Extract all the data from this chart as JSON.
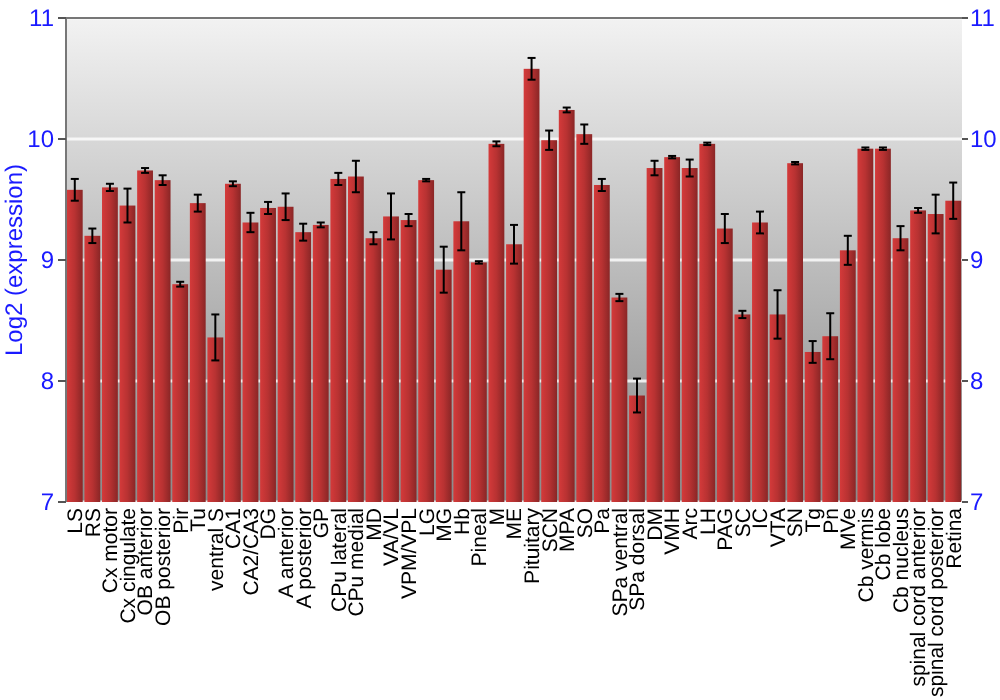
{
  "chart_data": {
    "type": "bar",
    "ylabel": "Log2 (expression)",
    "categories": [
      "LS",
      "RS",
      "Cx motor",
      "Cx cingulate",
      "OB anterior",
      "OB posterior",
      "Pir",
      "Tu",
      "ventral S",
      "CA1",
      "CA2/CA3",
      "DG",
      "A anterior",
      "A posterior",
      "GP",
      "CPu lateral",
      "CPu medial",
      "MD",
      "VA/VL",
      "VPM/VPL",
      "LG",
      "MG",
      "Hb",
      "Pineal",
      "M",
      "ME",
      "Pituitary",
      "SCN",
      "MPA",
      "SO",
      "Pa",
      "SPa ventral",
      "SPa dorsal",
      "DM",
      "VMH",
      "Arc",
      "LH",
      "PAG",
      "SC",
      "IC",
      "VTA",
      "SN",
      "Tg",
      "Pn",
      "MVe",
      "Cb vermis",
      "Cb lobe",
      "Cb nucleus",
      "spinal cord anterior",
      "spinal cord posterior",
      "Retina"
    ],
    "values": [
      9.58,
      9.2,
      9.6,
      9.45,
      9.74,
      9.66,
      8.8,
      9.47,
      8.36,
      9.63,
      9.31,
      9.43,
      9.44,
      9.23,
      9.29,
      9.67,
      9.69,
      9.18,
      9.36,
      9.33,
      9.66,
      8.92,
      9.32,
      8.98,
      9.96,
      9.13,
      10.58,
      9.99,
      10.24,
      10.04,
      9.62,
      8.69,
      7.88,
      9.76,
      9.85,
      9.76,
      9.96,
      9.26,
      8.55,
      9.31,
      8.55,
      9.8,
      8.24,
      8.37,
      9.08,
      9.92,
      9.92,
      9.18,
      9.41,
      9.38,
      9.49
    ],
    "errors": [
      0.09,
      0.06,
      0.03,
      0.14,
      0.02,
      0.04,
      0.02,
      0.07,
      0.19,
      0.02,
      0.08,
      0.05,
      0.11,
      0.07,
      0.02,
      0.05,
      0.13,
      0.05,
      0.19,
      0.05,
      0.01,
      0.19,
      0.24,
      0.01,
      0.02,
      0.16,
      0.09,
      0.08,
      0.02,
      0.08,
      0.05,
      0.03,
      0.14,
      0.06,
      0.01,
      0.07,
      0.01,
      0.12,
      0.03,
      0.09,
      0.2,
      0.01,
      0.09,
      0.19,
      0.12,
      0.01,
      0.01,
      0.1,
      0.02,
      0.16,
      0.15
    ],
    "color": "#b83232",
    "ylim": [
      7,
      11
    ],
    "yticks": [
      7,
      8,
      9,
      10,
      11
    ],
    "y2lim": [
      7,
      11
    ],
    "y2ticks": [
      7,
      8,
      9,
      10,
      11
    ],
    "grid": "y"
  }
}
